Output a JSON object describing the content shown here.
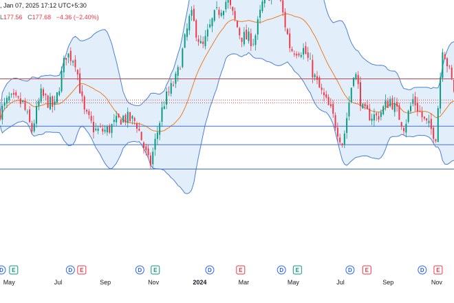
{
  "header": {
    "datetime": ", Jan 07, 2025 17:12 UTC+5:30",
    "low_label": "L",
    "low_value": "177.56",
    "close_label": "C",
    "close_value": "177.68",
    "change": "−4.36 (−2.40%)"
  },
  "colors": {
    "up": "#089981",
    "down": "#f23645",
    "band_line": "#4a7fd6",
    "band_fill": "#e3eefb",
    "basis": "#f07b1c",
    "hline_red": "#c2444a",
    "hline_blue": "#3d6fd6",
    "axis_text": "#131722",
    "event_blue": "#2962ff",
    "event_green": "#089981",
    "event_red": "#f23645"
  },
  "chart_data": {
    "type": "candlestick",
    "indicator": "bollinger-bands",
    "x_tick_labels": [
      "May",
      "Jul",
      "Sep",
      "Nov",
      "2024",
      "Mar",
      "May",
      "Jul",
      "Sep",
      "Nov"
    ],
    "y_range": [
      150,
      205
    ],
    "horizontal_levels": [
      {
        "value": 187.5,
        "style": "solid",
        "color": "red"
      },
      {
        "value": 182.8,
        "style": "dotted",
        "color": "red"
      },
      {
        "value": 182.2,
        "style": "dotted",
        "color": "red"
      },
      {
        "value": 177.0,
        "style": "solid",
        "color": "blue"
      },
      {
        "value": 172.9,
        "style": "solid",
        "color": "blue"
      },
      {
        "value": 167.5,
        "style": "solid",
        "color": "blue"
      }
    ],
    "price_path": [
      [
        0,
        180
      ],
      [
        0.02,
        183
      ],
      [
        0.05,
        182
      ],
      [
        0.07,
        176
      ],
      [
        0.09,
        184
      ],
      [
        0.12,
        181
      ],
      [
        0.145,
        193
      ],
      [
        0.165,
        192
      ],
      [
        0.185,
        180
      ],
      [
        0.21,
        176
      ],
      [
        0.235,
        176
      ],
      [
        0.27,
        179
      ],
      [
        0.3,
        178
      ],
      [
        0.33,
        168
      ],
      [
        0.36,
        182
      ],
      [
        0.39,
        188
      ],
      [
        0.42,
        202
      ],
      [
        0.445,
        194
      ],
      [
        0.47,
        201
      ],
      [
        0.5,
        205
      ],
      [
        0.53,
        197
      ],
      [
        0.56,
        196
      ],
      [
        0.58,
        205
      ],
      [
        0.61,
        208
      ],
      [
        0.64,
        194
      ],
      [
        0.67,
        194
      ],
      [
        0.7,
        186
      ],
      [
        0.73,
        180
      ],
      [
        0.755,
        173
      ],
      [
        0.78,
        190
      ],
      [
        0.8,
        180
      ],
      [
        0.83,
        179
      ],
      [
        0.86,
        183
      ],
      [
        0.89,
        177
      ],
      [
        0.91,
        183
      ],
      [
        0.935,
        178
      ],
      [
        0.96,
        175
      ],
      [
        0.975,
        195
      ],
      [
        1.0,
        185
      ]
    ],
    "events": [
      {
        "label": "D",
        "kind": "dividend",
        "color": "blue",
        "pos": 0.0
      },
      {
        "label": "E",
        "kind": "earnings",
        "color": "green",
        "pos": 0.027
      },
      {
        "label": "D",
        "kind": "dividend",
        "color": "blue",
        "pos": 0.152
      },
      {
        "label": "E",
        "kind": "earnings",
        "color": "red",
        "pos": 0.177
      },
      {
        "label": "D",
        "kind": "dividend",
        "color": "blue",
        "pos": 0.305
      },
      {
        "label": "E",
        "kind": "earnings",
        "color": "green",
        "pos": 0.339
      },
      {
        "label": "D",
        "kind": "dividend",
        "color": "blue",
        "pos": 0.459
      },
      {
        "label": "E",
        "kind": "earnings",
        "color": "red",
        "pos": 0.527
      },
      {
        "label": "D",
        "kind": "dividend",
        "color": "blue",
        "pos": 0.617
      },
      {
        "label": "E",
        "kind": "earnings",
        "color": "green",
        "pos": 0.652
      },
      {
        "label": "D",
        "kind": "dividend",
        "color": "blue",
        "pos": 0.768
      },
      {
        "label": "E",
        "kind": "earnings",
        "color": "red",
        "pos": 0.805
      },
      {
        "label": "D",
        "kind": "dividend",
        "color": "blue",
        "pos": 0.927
      },
      {
        "label": "E",
        "kind": "earnings",
        "color": "red",
        "pos": 0.962
      }
    ]
  }
}
